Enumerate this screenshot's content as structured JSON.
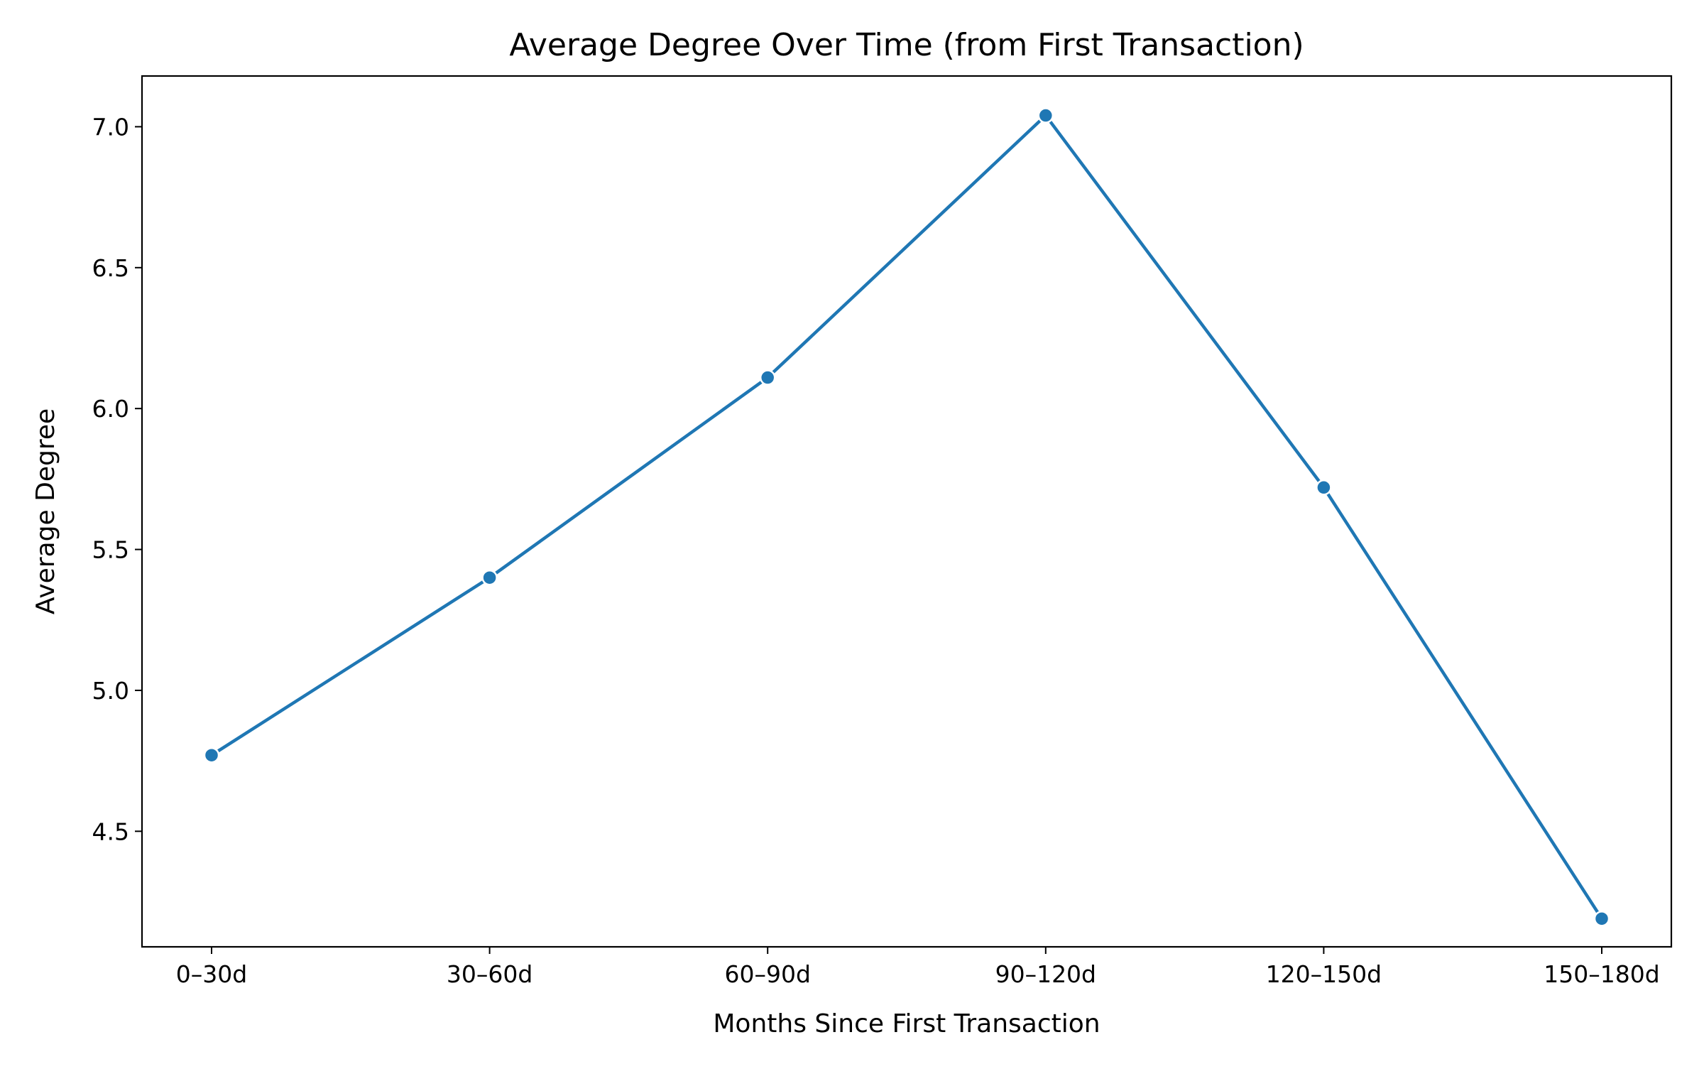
{
  "chart_data": {
    "type": "line",
    "title": "Average Degree Over Time (from First Transaction)",
    "xlabel": "Months Since First Transaction",
    "ylabel": "Average Degree",
    "categories": [
      "0–30d",
      "30–60d",
      "60–90d",
      "90–120d",
      "120–150d",
      "150–180d"
    ],
    "series": [
      {
        "values": [
          4.77,
          5.4,
          6.11,
          7.04,
          5.72,
          4.19
        ],
        "color": "#1f77b4"
      }
    ],
    "ylim": [
      4.09,
      7.18
    ],
    "yticks": [
      4.5,
      5.0,
      5.5,
      6.0,
      6.5,
      7.0
    ],
    "ytick_labels": [
      "4.5",
      "5.0",
      "5.5",
      "6.0",
      "6.5",
      "7.0"
    ],
    "grid": false,
    "legend": "none",
    "marker": "circle"
  }
}
